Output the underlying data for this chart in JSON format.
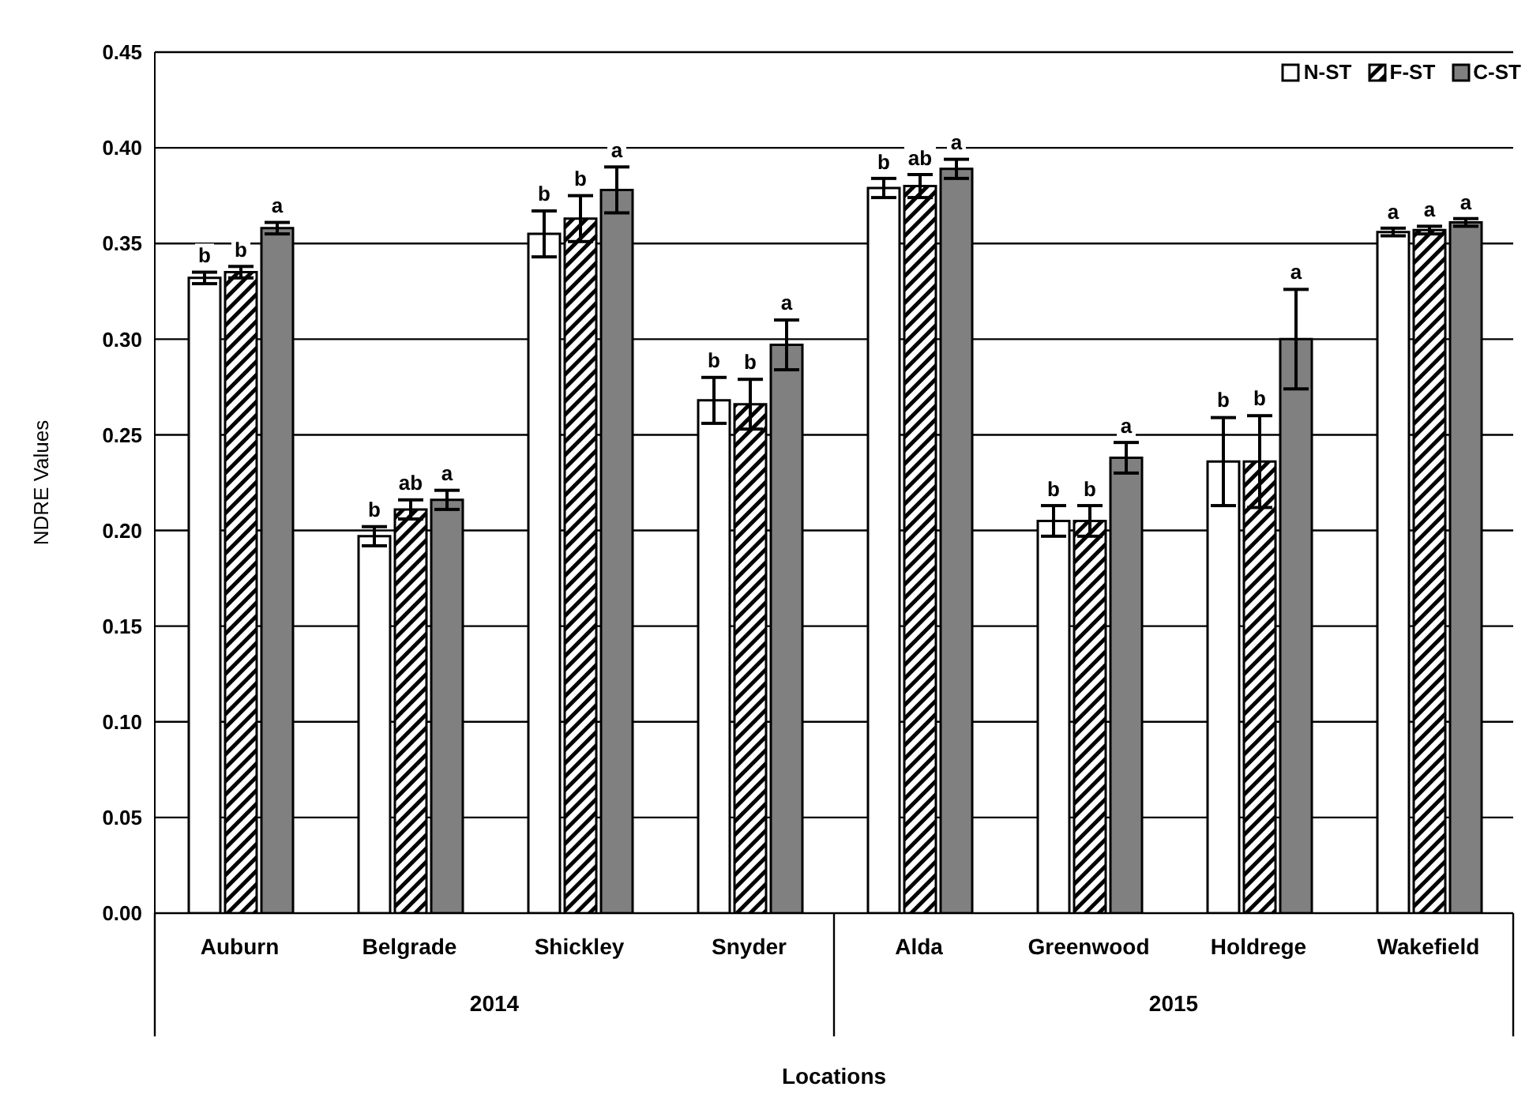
{
  "chart_data": {
    "type": "bar",
    "xlabel": "Locations",
    "ylabel": "NDRE Values",
    "categories": [
      "Auburn",
      "Belgrade",
      "Shickley",
      "Snyder",
      "Alda",
      "Greenwood",
      "Holdrege",
      "Wakefield"
    ],
    "annotations": [
      "2014",
      "2015"
    ],
    "series": [
      {
        "name": "N-ST",
        "color": "#ffffff",
        "values": [
          0.332,
          0.197,
          0.355,
          0.268,
          0.379,
          0.205,
          0.236,
          0.356
        ],
        "errors": [
          0.003,
          0.005,
          0.012,
          0.012,
          0.005,
          0.008,
          0.023,
          0.002
        ],
        "value_labels": [
          "b",
          "b",
          "b",
          "b",
          "b",
          "b",
          "b",
          "a"
        ]
      },
      {
        "name": "F-ST",
        "color": "#000000",
        "values": [
          0.335,
          0.211,
          0.363,
          0.266,
          0.38,
          0.205,
          0.236,
          0.357
        ],
        "errors": [
          0.003,
          0.005,
          0.012,
          0.013,
          0.006,
          0.008,
          0.024,
          0.002
        ],
        "value_labels": [
          "b",
          "ab",
          "b",
          "b",
          "ab",
          "b",
          "b",
          "a"
        ]
      },
      {
        "name": "C-ST",
        "color": "#808080",
        "values": [
          0.358,
          0.216,
          0.378,
          0.297,
          0.389,
          0.238,
          0.3,
          0.361
        ],
        "errors": [
          0.003,
          0.005,
          0.012,
          0.013,
          0.005,
          0.008,
          0.026,
          0.002
        ],
        "value_labels": [
          "a",
          "a",
          "a",
          "a",
          "a",
          "a",
          "a",
          "a"
        ]
      }
    ],
    "ylim": [
      0,
      0.45
    ],
    "yticks": [
      {
        "value": 0,
        "label": "0.00"
      },
      {
        "value": 0.05,
        "label": "0.05"
      },
      {
        "value": 0.1,
        "label": "0.10"
      },
      {
        "value": 0.15,
        "label": "0.15"
      },
      {
        "value": 0.2,
        "label": "0.20"
      },
      {
        "value": 0.25,
        "label": "0.25"
      },
      {
        "value": 0.3,
        "label": "0.30"
      },
      {
        "value": 0.35,
        "label": "0.35"
      },
      {
        "value": 0.4,
        "label": "0.40"
      },
      {
        "value": 0.45,
        "label": "0.45"
      }
    ],
    "grid": "y",
    "legend": "top right"
  }
}
